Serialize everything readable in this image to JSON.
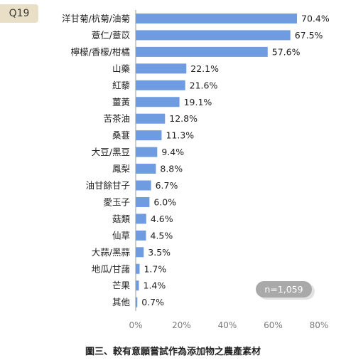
{
  "question_tag": "Q19",
  "caption": "圖三、較有意願嘗試作為添加物之農產素材",
  "chart_data": {
    "type": "bar",
    "orientation": "horizontal",
    "categories": [
      "洋甘菊/杭菊/油菊",
      "薏仁/薏苡",
      "檸檬/香檬/柑橘",
      "山藥",
      "紅藜",
      "薑黃",
      "苦茶油",
      "桑葚",
      "大豆/黑豆",
      "鳳梨",
      "油甘餘甘子",
      "愛玉子",
      "菇類",
      "仙草",
      "大蒜/黑蒜",
      "地瓜/甘藷",
      "芒果",
      "其他"
    ],
    "values": [
      70.4,
      67.5,
      57.6,
      22.1,
      21.6,
      19.1,
      12.8,
      11.3,
      9.4,
      8.8,
      6.7,
      6.0,
      4.6,
      4.5,
      3.5,
      1.7,
      1.4,
      0.7
    ],
    "value_labels": [
      "70.4%",
      "67.5%",
      "57.6%",
      "22.1%",
      "21.6%",
      "19.1%",
      "12.8%",
      "11.3%",
      "9.4%",
      "8.8%",
      "6.7%",
      "6.0%",
      "4.6%",
      "4.5%",
      "3.5%",
      "1.7%",
      "1.4%",
      "0.7%"
    ],
    "xticks": [
      "0%",
      "20%",
      "40%",
      "60%",
      "80%"
    ],
    "xlim": [
      0,
      80
    ],
    "sample_note": "n=1,059",
    "bar_color": "#6f9be0",
    "grid": false
  }
}
